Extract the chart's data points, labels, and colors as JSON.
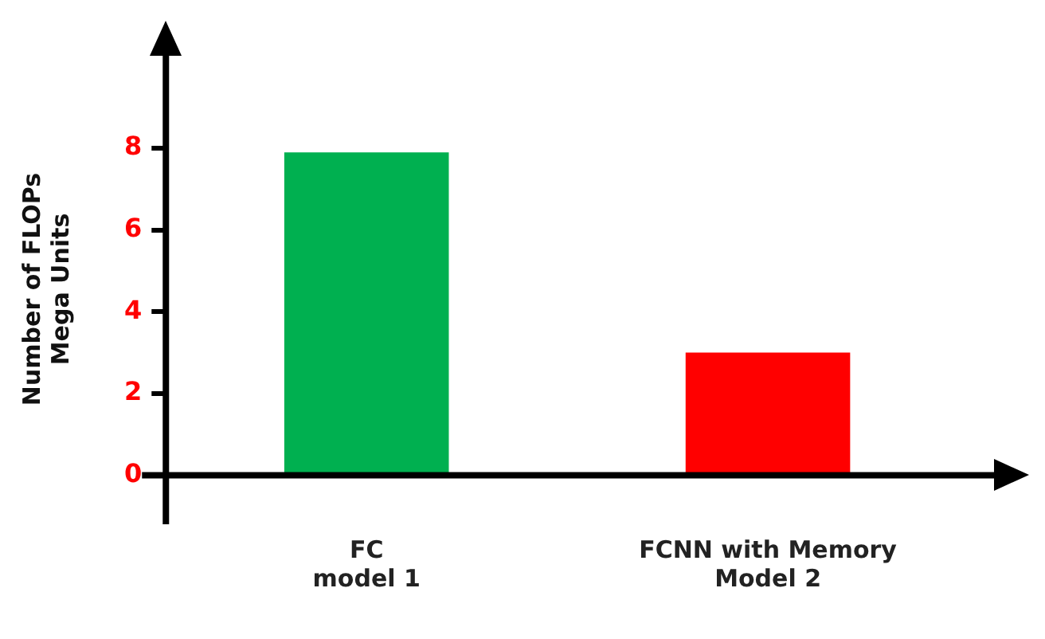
{
  "chart_data": {
    "type": "bar",
    "ylabel": "Number of FLOPs\nMega Units",
    "categories": [
      "FC\nmodel 1",
      "FCNN with Memory\nModel 2"
    ],
    "values": [
      7.9,
      3
    ],
    "colors": [
      "#00b050",
      "#ff0000"
    ],
    "ylim": [
      -1.2,
      10.3
    ],
    "yticks": [
      0,
      2,
      4,
      6,
      8
    ],
    "grid": false,
    "legend": false
  }
}
